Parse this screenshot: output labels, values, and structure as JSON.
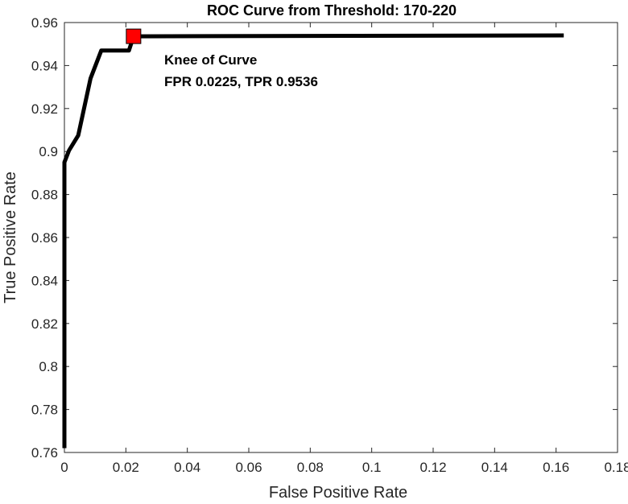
{
  "chart_data": {
    "type": "line",
    "title": "ROC Curve from Threshold: 170-220",
    "xlabel": "False Positive Rate",
    "ylabel": "True Positive Rate",
    "xlim": [
      0,
      0.18
    ],
    "ylim": [
      0.76,
      0.96
    ],
    "xticks": [
      0,
      0.02,
      0.04,
      0.06,
      0.08,
      0.1,
      0.12,
      0.14,
      0.16,
      0.18
    ],
    "xtick_labels": [
      "0",
      "0.02",
      "0.04",
      "0.06",
      "0.08",
      "0.1",
      "0.12",
      "0.14",
      "0.16",
      "0.18"
    ],
    "yticks": [
      0.76,
      0.78,
      0.8,
      0.82,
      0.84,
      0.86,
      0.88,
      0.9,
      0.92,
      0.94,
      0.96
    ],
    "ytick_labels": [
      "0.76",
      "0.78",
      "0.8",
      "0.82",
      "0.84",
      "0.86",
      "0.88",
      "0.9",
      "0.92",
      "0.94",
      "0.96"
    ],
    "grid": false,
    "series": [
      {
        "color": "#000000",
        "x": [
          0,
          0,
          0.0015,
          0.0045,
          0.0085,
          0.012,
          0.021,
          0.0225,
          0.1625
        ],
        "y": [
          0.762,
          0.895,
          0.9005,
          0.9075,
          0.934,
          0.947,
          0.947,
          0.9536,
          0.954
        ]
      }
    ],
    "marker": {
      "x": 0.0225,
      "y": 0.9536,
      "color": "#ff0000"
    },
    "annotation": {
      "x": 0.0325,
      "line1": "Knee of Curve",
      "line2": "FPR 0.0225, TPR 0.9536"
    }
  }
}
